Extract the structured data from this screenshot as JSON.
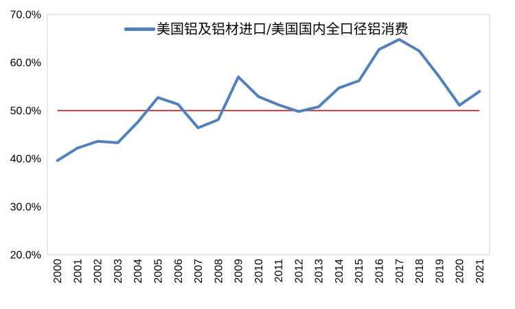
{
  "chart_data": {
    "type": "line",
    "title": "",
    "categories": [
      "2000",
      "2001",
      "2002",
      "2003",
      "2004",
      "2005",
      "2006",
      "2007",
      "2008",
      "2009",
      "2010",
      "2011",
      "2012",
      "2013",
      "2014",
      "2015",
      "2016",
      "2017",
      "2018",
      "2019",
      "2020",
      "2021"
    ],
    "series": [
      {
        "name": "美国铝及铝材进口/美国国内全口径铝消费",
        "color": "#4F81BD",
        "values": [
          39.6,
          42.2,
          43.6,
          43.3,
          47.6,
          52.7,
          51.3,
          46.4,
          48.1,
          57.0,
          52.9,
          51.2,
          49.8,
          50.8,
          54.7,
          56.2,
          62.7,
          64.8,
          62.4,
          57.0,
          51.1,
          54.0
        ]
      }
    ],
    "reference_line": {
      "value": 50.0,
      "color": "#C0504D"
    },
    "y_axis": {
      "min": 20,
      "max": 70,
      "step": 10,
      "tick_labels": [
        "20.0%",
        "30.0%",
        "40.0%",
        "50.0%",
        "60.0%",
        "70.0%"
      ]
    },
    "x_axis": {
      "label_rotation_deg": -90
    },
    "legend": {
      "position": "top",
      "entries": [
        {
          "label": "美国铝及铝材进口/美国国内全口径铝消费",
          "color": "#4F81BD"
        }
      ]
    },
    "grid": false,
    "plot_border_color": "#D9D9D9",
    "text_color": "#000000",
    "background": "#FFFFFF"
  }
}
